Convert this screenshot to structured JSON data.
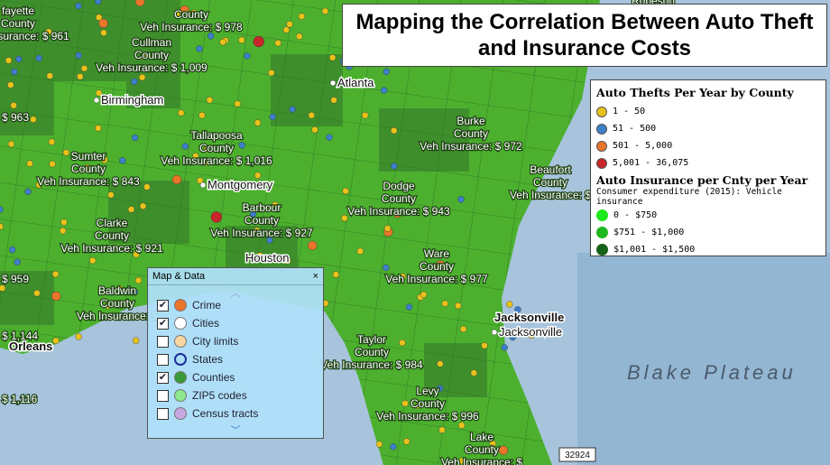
{
  "title": [
    "Mapping the Correlation Between Auto Theft",
    "and Insurance Costs"
  ],
  "legend": {
    "thefts": {
      "title": "Auto Thefts  Per Year by County",
      "items": [
        {
          "label": "1 - 50",
          "color": "#e8c21a"
        },
        {
          "label": "51 - 500",
          "color": "#3d7fc8"
        },
        {
          "label": "501 - 5,000",
          "color": "#e8752a"
        },
        {
          "label": "5,001 - 36,075",
          "color": "#c8262a"
        }
      ]
    },
    "insurance": {
      "title": "Auto Insurance per Cnty per Year",
      "subtitle": "Consumer expenditure (2015): Vehicle insurance",
      "items": [
        {
          "label": "0 - $750",
          "color": "#1ee81e"
        },
        {
          "label": "$751 - $1,000",
          "color": "#1db81d"
        },
        {
          "label": "$1,001 - $1,500",
          "color": "#17601a"
        }
      ]
    }
  },
  "panel": {
    "title": "Map & Data",
    "close": "×",
    "layers": [
      {
        "name": "Crime",
        "checked": true,
        "icon": "#e8752a"
      },
      {
        "name": "Cities",
        "checked": true,
        "icon": "#ffffff"
      },
      {
        "name": "City limits",
        "checked": false,
        "icon": "#f8d8a0"
      },
      {
        "name": "States",
        "checked": false,
        "icon": "#1a2f9a"
      },
      {
        "name": "Counties",
        "checked": true,
        "icon": "#3a9a3a"
      },
      {
        "name": "ZIP5 codes",
        "checked": false,
        "icon": "#8ee88e"
      },
      {
        "name": "Census tracts",
        "checked": false,
        "icon": "#c8a8e0"
      }
    ]
  },
  "map": {
    "counties": [
      {
        "name": "fayette",
        "kind": "County",
        "insurance": "Veh Insurance: $ 961"
      },
      {
        "name": "",
        "kind": "County",
        "insurance": "Veh Insurance: $ 978"
      },
      {
        "name": "Cullman",
        "kind": "County",
        "insurance": "Veh Insurance: $ 1,009"
      },
      {
        "name": "Burke",
        "kind": "County",
        "insurance": "Veh Insurance: $ 972"
      },
      {
        "name": "Tallapoosa",
        "kind": "County",
        "insurance": "Veh Insurance: $ 1,016"
      },
      {
        "name": "Sumter",
        "kind": "County",
        "insurance": "Veh Insurance: $ 843"
      },
      {
        "name": "Beaufort",
        "kind": "County",
        "insurance": "Veh Insurance: $"
      },
      {
        "name": "Dodge",
        "kind": "County",
        "insurance": "Veh Insurance: $ 943"
      },
      {
        "name": "Barbour",
        "kind": "County",
        "insurance": "Veh Insurance: $ 927"
      },
      {
        "name": "Clarke",
        "kind": "County",
        "insurance": "Veh Insurance: $ 921"
      },
      {
        "name": "Ware",
        "kind": "County",
        "insurance": "Veh Insurance: $ 977"
      },
      {
        "name": "Baldwin",
        "kind": "County",
        "insurance": "Veh Insurance: $"
      },
      {
        "name": "Taylor",
        "kind": "County",
        "insurance": "Veh Insurance: $ 984"
      },
      {
        "name": "Levy",
        "kind": "County",
        "insurance": "Veh Insurance: $ 996"
      },
      {
        "name": "Lake",
        "kind": "County",
        "insurance": "Veh Insurance: $"
      }
    ],
    "fragments": [
      "$ 963",
      "$ 959",
      "$ 1,144",
      "$ 1,116",
      "Robeson"
    ],
    "cities": [
      "Birmingham",
      "Atlanta",
      "Montgomery",
      "Houston",
      "Jacksonville",
      "Jacksonville",
      "Orleans"
    ],
    "water": "Blake Plateau",
    "badge": "32924"
  }
}
